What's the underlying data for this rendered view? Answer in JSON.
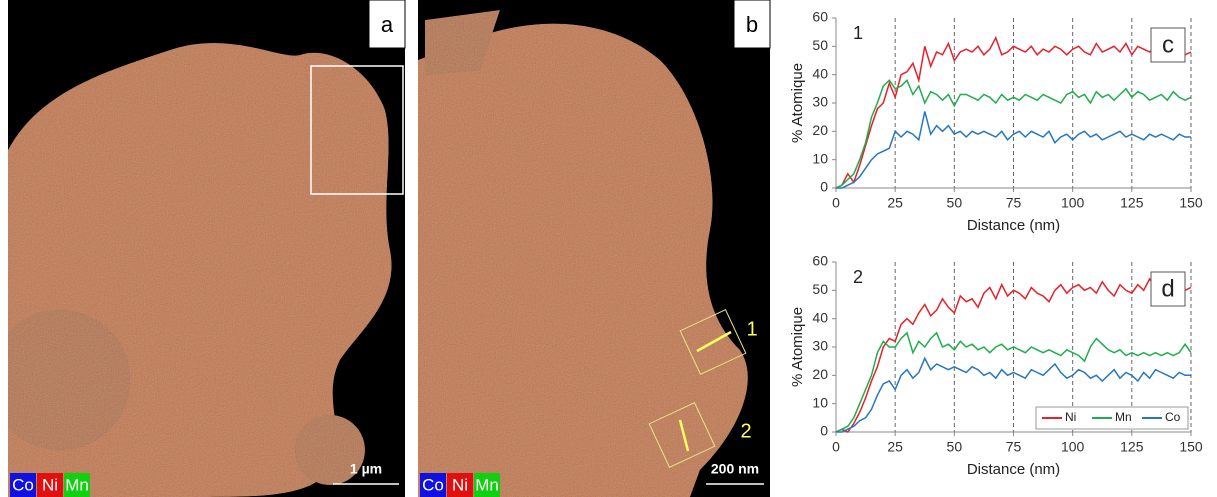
{
  "images": [
    {
      "label": "a",
      "scale_bar": "1 µm"
    },
    {
      "label": "b",
      "scale_bar": "200 nm",
      "profiles": [
        "1",
        "2"
      ]
    }
  ],
  "element_legend": [
    {
      "name": "Co",
      "color": "#1010e0"
    },
    {
      "name": "Ni",
      "color": "#e01010"
    },
    {
      "name": "Mn",
      "color": "#10d010"
    }
  ],
  "chart_data": [
    {
      "type": "line",
      "panel_label": "c",
      "profile": "1",
      "xlabel": "Distance (nm)",
      "ylabel": "% Atomique",
      "x": [
        0,
        2.5,
        5,
        7.5,
        10,
        12.5,
        15,
        17.5,
        20,
        22.5,
        25,
        27.5,
        30,
        32.5,
        35,
        37.5,
        40,
        42.5,
        45,
        47.5,
        50,
        52.5,
        55,
        57.5,
        60,
        62.5,
        65,
        67.5,
        70,
        72.5,
        75,
        77.5,
        80,
        82.5,
        85,
        87.5,
        90,
        92.5,
        95,
        97.5,
        100,
        102.5,
        105,
        107.5,
        110,
        112.5,
        115,
        117.5,
        120,
        122.5,
        125,
        127.5,
        130,
        132.5,
        135,
        137.5,
        140,
        142.5,
        145,
        147.5,
        150
      ],
      "series": [
        {
          "name": "Ni",
          "color": "#e8202a",
          "values": [
            0,
            1,
            5,
            2,
            8,
            15,
            22,
            28,
            30,
            37,
            32,
            40,
            41,
            44,
            38,
            50,
            43,
            48,
            47,
            51,
            45,
            48,
            49,
            48,
            50,
            47,
            49,
            53,
            47,
            48,
            50,
            49,
            48,
            50,
            47,
            49,
            48,
            50,
            49,
            47,
            49,
            50,
            48,
            47,
            51,
            48,
            49,
            50,
            48,
            51,
            47,
            50,
            49,
            48,
            50,
            47,
            49,
            48,
            48,
            47,
            48
          ]
        },
        {
          "name": "Mn",
          "color": "#1fae4c",
          "values": [
            0,
            1,
            3,
            5,
            10,
            16,
            25,
            30,
            36,
            38,
            35,
            36,
            38,
            33,
            36,
            30,
            34,
            33,
            31,
            33,
            29,
            33,
            33,
            32,
            31,
            33,
            32,
            30,
            33,
            31,
            32,
            31,
            33,
            32,
            31,
            33,
            32,
            31,
            30,
            33,
            34,
            32,
            33,
            30,
            34,
            32,
            33,
            31,
            33,
            35,
            32,
            34,
            33,
            31,
            32,
            33,
            31,
            34,
            32,
            31,
            32
          ]
        },
        {
          "name": "Co",
          "color": "#2677bf",
          "values": [
            0,
            0,
            1,
            2,
            4,
            7,
            10,
            12,
            13,
            14,
            20,
            18,
            20,
            19,
            17,
            27,
            19,
            22,
            20,
            22,
            19,
            20,
            18,
            20,
            19,
            20,
            19,
            18,
            20,
            17,
            19,
            20,
            18,
            20,
            19,
            18,
            20,
            16,
            18,
            19,
            17,
            19,
            20,
            18,
            19,
            17,
            18,
            19,
            20,
            18,
            19,
            18,
            17,
            19,
            18,
            19,
            18,
            17,
            19,
            18,
            18
          ]
        }
      ],
      "xlim": [
        0,
        150
      ],
      "ylim": [
        0,
        60
      ],
      "xticks": [
        0,
        25,
        50,
        75,
        100,
        125,
        150
      ],
      "yticks": [
        0,
        10,
        20,
        30,
        40,
        50,
        60
      ],
      "grid": "x",
      "legend": false
    },
    {
      "type": "line",
      "panel_label": "d",
      "profile": "2",
      "xlabel": "Distance (nm)",
      "ylabel": "% Atomique",
      "x": [
        0,
        2.5,
        5,
        7.5,
        10,
        12.5,
        15,
        17.5,
        20,
        22.5,
        25,
        27.5,
        30,
        32.5,
        35,
        37.5,
        40,
        42.5,
        45,
        47.5,
        50,
        52.5,
        55,
        57.5,
        60,
        62.5,
        65,
        67.5,
        70,
        72.5,
        75,
        77.5,
        80,
        82.5,
        85,
        87.5,
        90,
        92.5,
        95,
        97.5,
        100,
        102.5,
        105,
        107.5,
        110,
        112.5,
        115,
        117.5,
        120,
        122.5,
        125,
        127.5,
        130,
        132.5,
        135,
        137.5,
        140,
        142.5,
        145,
        147.5,
        150
      ],
      "series": [
        {
          "name": "Ni",
          "color": "#e8202a",
          "values": [
            0,
            1,
            0,
            3,
            7,
            12,
            18,
            23,
            30,
            33,
            32,
            38,
            40,
            38,
            42,
            45,
            41,
            43,
            47,
            44,
            42,
            48,
            46,
            47,
            44,
            49,
            51,
            47,
            52,
            48,
            50,
            49,
            47,
            51,
            49,
            48,
            46,
            50,
            52,
            49,
            51,
            52,
            50,
            51,
            49,
            53,
            50,
            48,
            52,
            50,
            49,
            52,
            50,
            54,
            51,
            48,
            52,
            50,
            51,
            50,
            51
          ]
        },
        {
          "name": "Mn",
          "color": "#1fae4c",
          "values": [
            0,
            1,
            2,
            5,
            10,
            15,
            20,
            28,
            32,
            30,
            30,
            33,
            35,
            28,
            32,
            30,
            33,
            35,
            30,
            31,
            29,
            32,
            30,
            31,
            29,
            30,
            28,
            30,
            31,
            29,
            30,
            29,
            28,
            30,
            29,
            28,
            29,
            28,
            27,
            29,
            28,
            27,
            25,
            30,
            33,
            31,
            29,
            28,
            29,
            27,
            28,
            27,
            28,
            27,
            28,
            27,
            28,
            27,
            28,
            31,
            28
          ]
        },
        {
          "name": "Co",
          "color": "#2677bf",
          "values": [
            0,
            0,
            1,
            2,
            4,
            5,
            8,
            13,
            17,
            18,
            15,
            20,
            22,
            19,
            21,
            26,
            22,
            24,
            23,
            22,
            23,
            22,
            21,
            23,
            22,
            20,
            21,
            19,
            22,
            20,
            21,
            20,
            19,
            22,
            21,
            20,
            22,
            24,
            21,
            19,
            20,
            22,
            21,
            19,
            20,
            18,
            20,
            22,
            19,
            21,
            20,
            18,
            21,
            19,
            22,
            21,
            20,
            19,
            21,
            20,
            20
          ]
        }
      ],
      "xlim": [
        0,
        150
      ],
      "ylim": [
        0,
        60
      ],
      "xticks": [
        0,
        25,
        50,
        75,
        100,
        125,
        150
      ],
      "yticks": [
        0,
        10,
        20,
        30,
        40,
        50,
        60
      ],
      "grid": "x",
      "legend": true,
      "legend_position": "lower right"
    }
  ]
}
